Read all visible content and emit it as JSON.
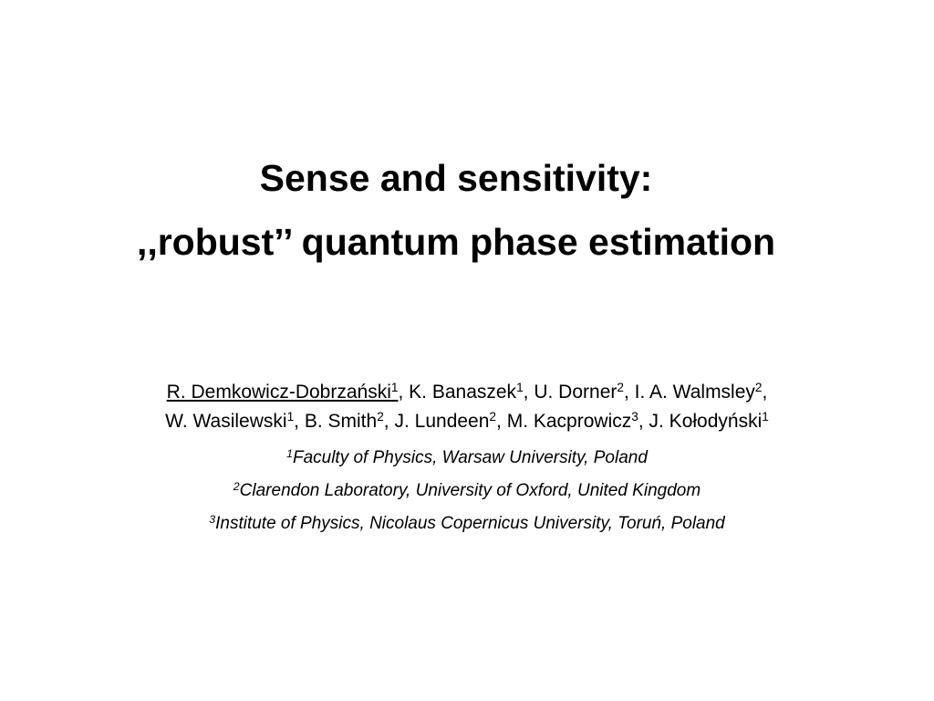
{
  "slide": {
    "title": [
      "Sense and sensitivity:",
      ",,robust’’ quantum phase estimation"
    ],
    "author_separator": ",",
    "author_lines": [
      [
        {
          "name": "R. Demkowicz-Dobrzański",
          "affiliation": "1",
          "underline": true
        },
        {
          "name": "K. Banaszek",
          "affiliation": "1"
        },
        {
          "name": "U. Dorner",
          "affiliation": "2"
        },
        {
          "name": "I. A. Walmsley",
          "affiliation": "2"
        }
      ],
      [
        {
          "name": "W. Wasilewski",
          "affiliation": "1"
        },
        {
          "name": "B. Smith",
          "affiliation": "2"
        },
        {
          "name": "J. Lundeen",
          "affiliation": "2"
        },
        {
          "name": "M. Kacprowicz",
          "affiliation": "3"
        },
        {
          "name": "J. Kołodyński",
          "affiliation": "1"
        }
      ]
    ],
    "affiliations": [
      {
        "number": "1",
        "text": "Faculty of Physics, Warsaw University, Poland"
      },
      {
        "number": "2",
        "text": "Clarendon Laboratory, University of Oxford, United Kingdom"
      },
      {
        "number": "3",
        "text": "Institute of Physics, Nicolaus Copernicus University, Toruń, Poland"
      }
    ]
  }
}
